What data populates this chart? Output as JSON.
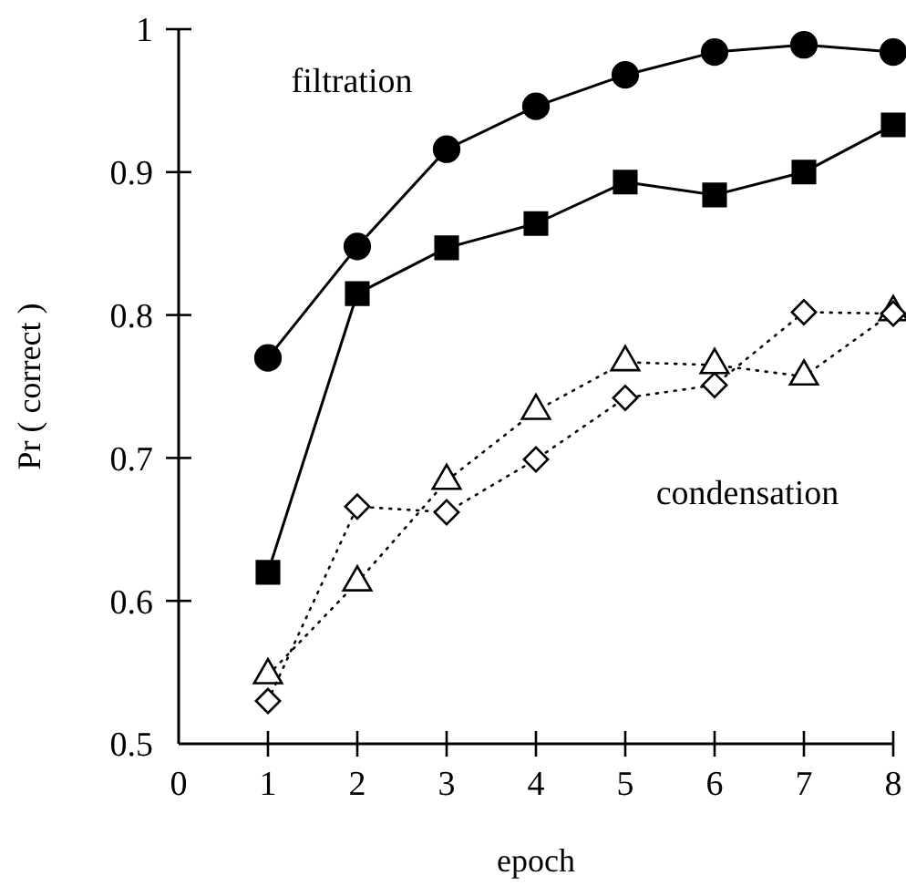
{
  "chart_data": {
    "type": "line",
    "xlabel": "epoch",
    "ylabel": "Pr ( correct )",
    "x": [
      1,
      2,
      3,
      4,
      5,
      6,
      7,
      8
    ],
    "xlim": [
      0,
      8
    ],
    "xticks": [
      0,
      1,
      2,
      3,
      4,
      5,
      6,
      7,
      8
    ],
    "ylim": [
      0.5,
      1
    ],
    "yticks": [
      0.5,
      0.6,
      0.7,
      0.8,
      0.9,
      1
    ],
    "grid": false,
    "series": [
      {
        "color": "#000000",
        "marker": "circle",
        "line_style": "solid",
        "values": [
          0.77,
          0.848,
          0.916,
          0.946,
          0.968,
          0.984,
          0.989,
          0.984
        ]
      },
      {
        "color": "#000000",
        "marker": "square",
        "line_style": "solid",
        "values": [
          0.62,
          0.815,
          0.847,
          0.864,
          0.893,
          0.884,
          0.9,
          0.933
        ]
      },
      {
        "color": "#000000",
        "marker": "triangle",
        "line_style": "dotted",
        "values": [
          0.548,
          0.613,
          0.684,
          0.733,
          0.767,
          0.765,
          0.757,
          0.802
        ]
      },
      {
        "color": "#000000",
        "marker": "diamond",
        "line_style": "dotted",
        "values": [
          0.53,
          0.666,
          0.662,
          0.699,
          0.742,
          0.751,
          0.802,
          0.801
        ]
      }
    ],
    "annotations": [
      "filtration",
      "condensation"
    ]
  }
}
